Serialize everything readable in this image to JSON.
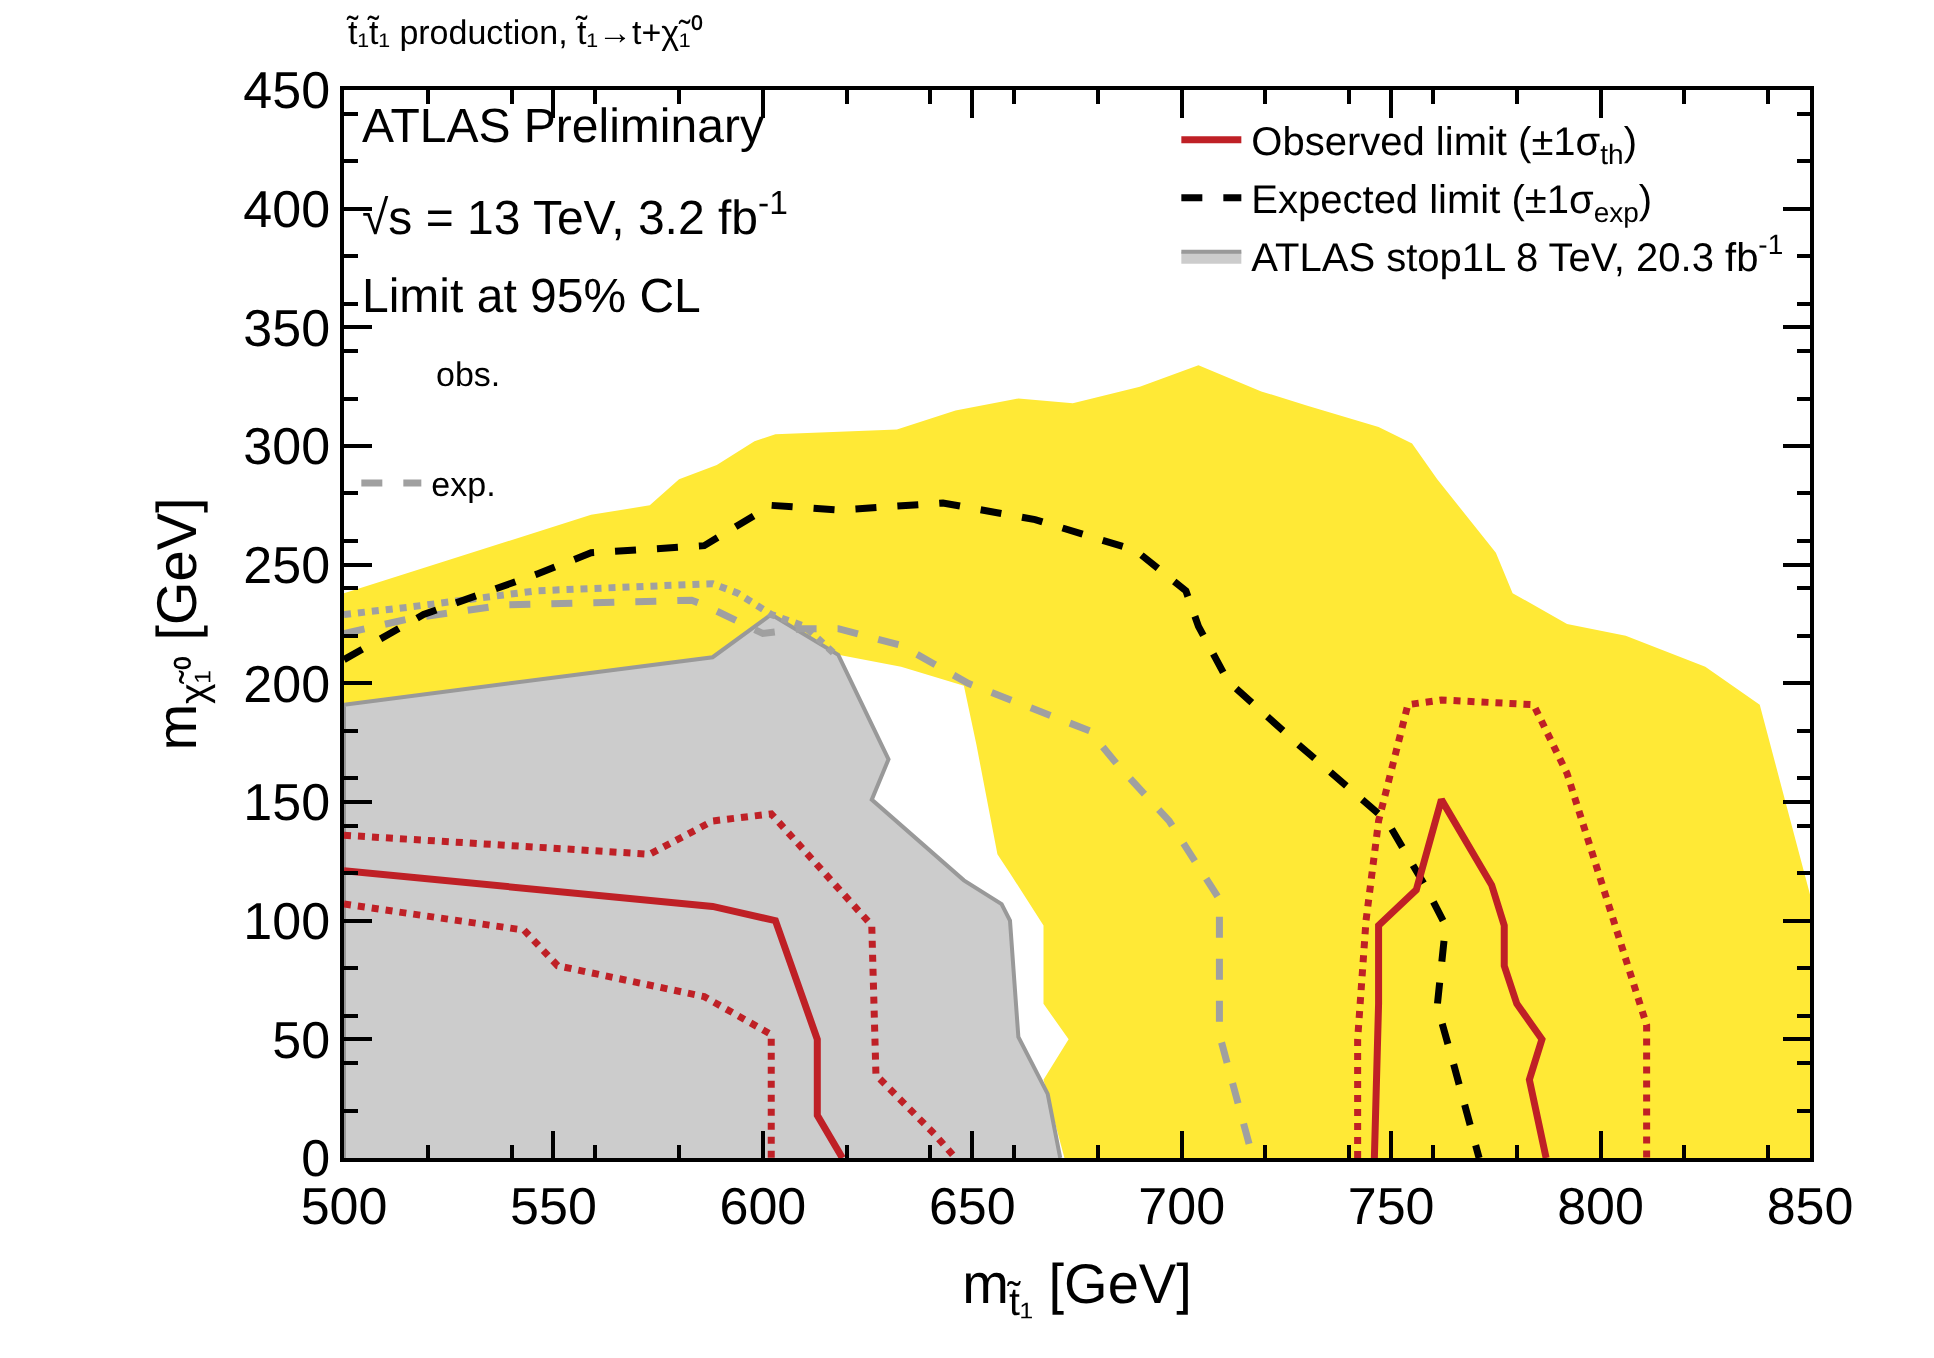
{
  "chart_data": {
    "type": "line",
    "title": "t̃₁t̃₁ production, t̃₁→t+χ̃₁⁰",
    "xlabel": "m$_{t̃₁}$ [GeV]",
    "ylabel": "m$_{χ̃₁⁰}$ [GeV]",
    "xlim": [
      500,
      850
    ],
    "xticks": [
      500,
      550,
      600,
      650,
      700,
      750,
      800,
      850
    ],
    "ylim": [
      0,
      450
    ],
    "yticks": [
      0,
      50,
      100,
      150,
      200,
      250,
      300,
      350,
      400,
      450
    ],
    "legend": "top right",
    "annotations": [
      "ATLAS Preliminary",
      "√s = 13 TeV, 3.2 fb$^{-1}$",
      "Limit at 95% CL",
      "obs."
    ],
    "series": [
      {
        "type": "area",
        "color": "#ffe936",
        "x": [
          500,
          559,
          573,
          580,
          589,
          598,
          603,
          632,
          646,
          661,
          674,
          690,
          704,
          719,
          730,
          747,
          755,
          761,
          775,
          779,
          792,
          806,
          825,
          838,
          850,
          850,
          672,
          667,
          673,
          667,
          667,
          659,
          656,
          651,
          648,
          633,
          618,
          588,
          500
        ],
        "values": [
          238,
          271,
          275,
          286,
          292,
          302,
          305,
          307,
          315,
          320,
          318,
          325,
          334,
          323,
          317,
          308,
          301,
          286,
          255,
          238,
          225,
          220,
          207,
          191,
          111,
          0,
          0,
          33,
          50,
          65,
          98,
          120,
          128,
          174,
          199,
          207,
          212,
          211,
          191
        ]
      },
      {
        "type": "area",
        "name": "ATLAS stop1L 8 TeV, 20.3 fb$^{-1}$",
        "color": "#cccccc",
        "x": [
          500,
          500,
          588,
          602,
          618,
          630,
          626,
          648,
          657,
          659,
          661,
          668,
          671
        ],
        "values": [
          0,
          191,
          211,
          229,
          212,
          168,
          151,
          117,
          107,
          100,
          51,
          27,
          0
        ]
      },
      {
        "line_style": "dotted",
        "color": "#a0a0a0",
        "x": [
          500,
          515,
          546,
          588,
          594,
          602,
          610,
          618
        ],
        "values": [
          229,
          232,
          239,
          242,
          238,
          229,
          224,
          211
        ]
      },
      {
        "name": "exp.",
        "line_style": "dashed",
        "color": "#a0a0a0",
        "x": [
          500,
          515,
          538,
          583,
          586,
          600,
          609,
          618,
          633,
          649,
          678,
          685,
          697,
          709,
          709,
          717
        ],
        "values": [
          221,
          227,
          233,
          235,
          233,
          221,
          223,
          223,
          216,
          200,
          180,
          165,
          142,
          109,
          52,
          0
        ]
      },
      {
        "name": "Expected limit (±1σ$_{exp}$)",
        "line_style": "dashed",
        "color": "#000000",
        "x": [
          500,
          519,
          546,
          559,
          586,
          602,
          618,
          643,
          665,
          689,
          701,
          704,
          711,
          728,
          749,
          758,
          763,
          761,
          765,
          771
        ],
        "values": [
          210,
          229,
          246,
          255,
          258,
          275,
          273,
          276,
          269,
          256,
          239,
          224,
          201,
          174,
          142,
          115,
          98,
          64,
          39,
          0
        ]
      },
      {
        "line_style": "dotted",
        "color": "#bf2026",
        "x": [
          500,
          573,
          588,
          602,
          626,
          627,
          641,
          646
        ],
        "values": [
          136,
          128,
          142,
          145,
          98,
          35,
          10,
          0
        ]
      },
      {
        "line_style": "dotted",
        "color": "#bf2026",
        "x": [
          500,
          543,
          551,
          586,
          602,
          602
        ],
        "values": [
          107,
          96,
          81,
          68,
          52,
          0
        ]
      },
      {
        "name": "Observed limit (±1σ$_{th}$)",
        "line_style": "solid",
        "color": "#bf2026",
        "x": [
          500,
          588,
          603,
          613,
          613,
          619
        ],
        "values": [
          121,
          106,
          100,
          50,
          18,
          0
        ]
      },
      {
        "line_style": "solid",
        "color": "#bf2026",
        "x": [
          746,
          747,
          747,
          756,
          762,
          774,
          777,
          777,
          780,
          786,
          783,
          787
        ],
        "values": [
          0,
          65,
          98,
          113,
          151,
          115,
          98,
          81,
          65,
          50,
          33,
          0
        ]
      },
      {
        "line_style": "dotted",
        "color": "#bf2026",
        "x": [
          742,
          742,
          744,
          747,
          754,
          762,
          784,
          792,
          811,
          811
        ],
        "values": [
          0,
          50,
          100,
          142,
          191,
          193,
          191,
          162,
          56,
          0
        ]
      }
    ]
  }
}
